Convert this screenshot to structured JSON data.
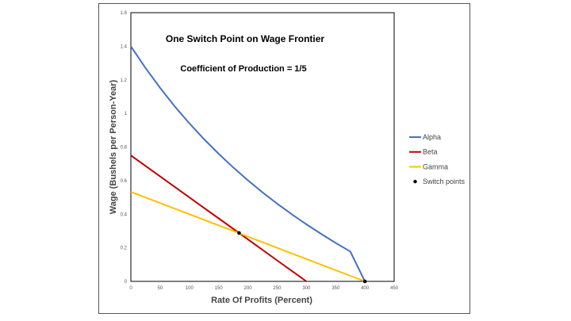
{
  "chart_data": {
    "type": "line",
    "title": "One Switch Point on Wage Frontier",
    "subtitle": "Coefficient of Production = 1/5",
    "xlabel": "Rate Of Profits (Percent)",
    "ylabel": "Wage (Bushels per Person-Year)",
    "xlim": [
      0,
      450
    ],
    "ylim": [
      0,
      1.6
    ],
    "xticks": [
      "0",
      "50",
      "100",
      "150",
      "200",
      "250",
      "300",
      "350",
      "400",
      "450"
    ],
    "yticks": [
      "0",
      "0.2",
      "0.4",
      "0.6",
      "0.8",
      "1",
      "1.2",
      "1.4",
      "1.6"
    ],
    "grid": false,
    "legend_position": "right",
    "series": [
      {
        "name": "Alpha",
        "color": "#4472c4",
        "x": [
          0,
          25,
          50,
          75,
          100,
          125,
          150,
          175,
          200,
          225,
          250,
          275,
          300,
          325,
          350,
          375,
          400
        ],
        "y": [
          1.4,
          1.271,
          1.152,
          1.042,
          0.941,
          0.847,
          0.76,
          0.678,
          0.602,
          0.53,
          0.463,
          0.4,
          0.34,
          0.283,
          0.229,
          0.178,
          0.0
        ]
      },
      {
        "name": "Beta",
        "color": "#c00000",
        "x": [
          0,
          50,
          100,
          150,
          185,
          250,
          300
        ],
        "y": [
          0.75,
          0.625,
          0.5,
          0.375,
          0.288,
          0.125,
          0.0
        ]
      },
      {
        "name": "Gamma",
        "color": "#ffc000",
        "x": [
          0,
          100,
          185,
          300,
          400
        ],
        "y": [
          0.533,
          0.4,
          0.287,
          0.133,
          0.0
        ]
      }
    ],
    "points": {
      "name": "Switch points",
      "color": "#000000",
      "x": [
        185,
        400
      ],
      "y": [
        0.288,
        0.0
      ]
    }
  }
}
